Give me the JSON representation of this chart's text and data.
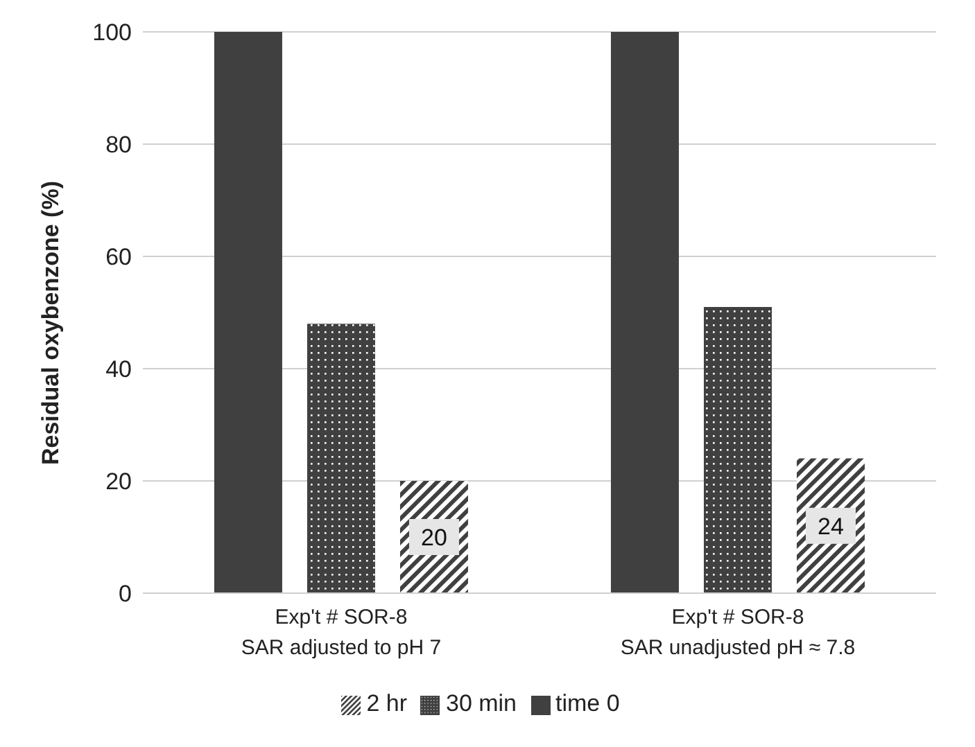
{
  "chart_data": {
    "type": "bar",
    "ylabel": "Residual oxybenzone (%)",
    "categories": [
      "Exp't # SOR-8\nSAR adjusted to pH 7",
      "Exp't # SOR-8\nSAR unadjusted pH ≈ 7.8"
    ],
    "series": [
      {
        "name": "time 0",
        "color": "#404040",
        "values": [
          100,
          100
        ]
      },
      {
        "name": "30 min",
        "color": "#404040",
        "values": [
          48,
          51
        ]
      },
      {
        "name": "2 hr",
        "color": "#404040",
        "values": [
          20,
          24
        ],
        "value_labels": [
          "20",
          "24"
        ]
      }
    ],
    "ylim": [
      0,
      100
    ],
    "yticks": [
      0,
      20,
      40,
      60,
      80,
      100
    ],
    "grid": "y",
    "legend": "bottom"
  }
}
